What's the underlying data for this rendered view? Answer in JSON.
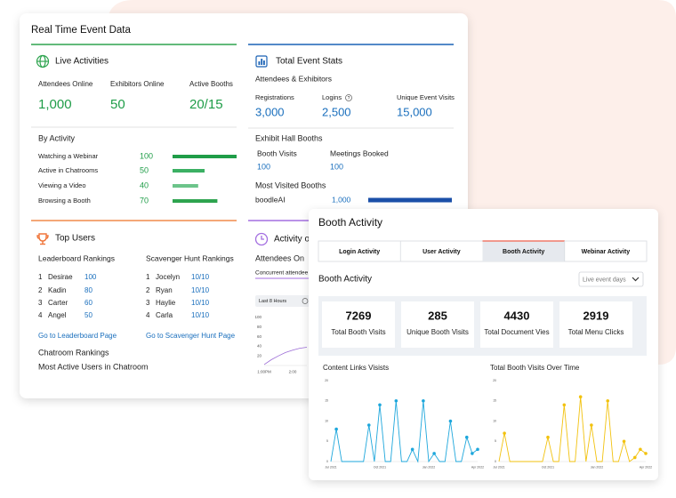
{
  "main": {
    "title": "Real Time Event Data"
  },
  "live": {
    "title": "Live Activities",
    "stats": [
      {
        "label": "Attendees Online",
        "value": "1,000"
      },
      {
        "label": "Exhibitors Online",
        "value": "50"
      },
      {
        "label": "Active Booths",
        "value": "20/15"
      }
    ]
  },
  "by_activity": {
    "title": "By Activity",
    "rows": [
      {
        "label": "Watching a Webinar",
        "value": 100
      },
      {
        "label": "Active in Chatrooms",
        "value": 50
      },
      {
        "label": "Viewing a Video",
        "value": 40
      },
      {
        "label": "Browsing a Booth",
        "value": 70
      }
    ]
  },
  "total": {
    "title": "Total Event Stats",
    "subtitle": "Attendees & Exhibitors",
    "stats": [
      {
        "label": "Registrations",
        "value": "3,000"
      },
      {
        "label": "Logins",
        "value": "2,500"
      },
      {
        "label": "Unique Event Visits",
        "value": "15,000"
      }
    ]
  },
  "exhibit": {
    "title": "Exhibit Hall Booths",
    "stats": [
      {
        "label": "Booth Visits",
        "value": "100"
      },
      {
        "label": "Meetings Booked",
        "value": "100"
      }
    ],
    "most_visited": {
      "title": "Most Visited Booths",
      "rows": [
        {
          "label": "boodleAI",
          "value": 1000,
          "value_label": "1,000"
        }
      ]
    }
  },
  "top_users": {
    "title": "Top Users",
    "leaderboard": {
      "title": "Leaderboard Rankings",
      "link": "Go to Leaderboard Page",
      "rows": [
        {
          "rank": "1",
          "name": "Desirae",
          "score": "100"
        },
        {
          "rank": "2",
          "name": "Kadin",
          "score": "80"
        },
        {
          "rank": "3",
          "name": "Carter",
          "score": "60"
        },
        {
          "rank": "4",
          "name": "Angel",
          "score": "50"
        }
      ]
    },
    "scavenger": {
      "title": "Scavenger Hunt Rankings",
      "link": "Go to Scavenger Hunt Page",
      "rows": [
        {
          "rank": "1",
          "name": "Jocelyn",
          "score": "10/10"
        },
        {
          "rank": "2",
          "name": "Ryan",
          "score": "10/10"
        },
        {
          "rank": "3",
          "name": "Haylie",
          "score": "10/10"
        },
        {
          "rank": "4",
          "name": "Carla",
          "score": "10/10"
        }
      ]
    },
    "chatroom_title": "Chatroom Rankings",
    "chatroom_subtitle": "Most Active Users in Chatroom"
  },
  "activity": {
    "title": "Activity o",
    "subtitle": "Attendees On",
    "tab": "Concurrent attendee",
    "button": "Last 8 Hours",
    "chart": {
      "type": "line",
      "color": "#9b6bd6",
      "categories": [
        "1:00PM",
        null,
        null,
        null,
        "2:00",
        null,
        null
      ],
      "values": [
        2,
        12,
        20,
        27,
        32,
        36,
        38
      ],
      "ylim": [
        0,
        100
      ],
      "yticks": [
        20,
        40,
        60,
        80,
        100
      ]
    }
  },
  "booth": {
    "title": "Booth Activity",
    "tabs": [
      "Login Activity",
      "User Activity",
      "Booth Activity",
      "Webinar Activity"
    ],
    "active_tab": 2,
    "section": "Booth Activity",
    "filter": "Live event days",
    "kpis": [
      {
        "value": 7269,
        "label": "Total Booth Visits"
      },
      {
        "value": 285,
        "label": "Unique Booth Visits"
      },
      {
        "value": 4430,
        "label": "Total Document Vies"
      },
      {
        "value": 2919,
        "label": "Total Menu Clicks"
      }
    ],
    "charts": [
      {
        "type": "line",
        "title": "Content Links Visists",
        "color": "#1ea7dc",
        "categories": [
          "Jul 2021",
          null,
          null,
          null,
          null,
          null,
          null,
          null,
          null,
          "Oct 2021",
          null,
          null,
          null,
          null,
          null,
          null,
          null,
          null,
          "Jan 2022",
          null,
          null,
          null,
          null,
          null,
          null,
          null,
          null,
          "Apr 2022"
        ],
        "values": [
          0,
          8,
          0,
          0,
          0,
          0,
          0,
          9,
          0,
          14,
          0,
          0,
          15,
          0,
          0,
          3,
          0,
          15,
          0,
          2,
          0,
          0,
          10,
          0,
          0,
          6,
          2,
          3
        ],
        "ylim": [
          0,
          20
        ],
        "yticks": [
          0,
          5,
          10,
          15,
          20
        ]
      },
      {
        "type": "line",
        "title": "Total Booth Visits Over Time",
        "color": "#f2c20f",
        "categories": [
          "Jul 2021",
          null,
          null,
          null,
          null,
          null,
          null,
          null,
          null,
          "Oct 2021",
          null,
          null,
          null,
          null,
          null,
          null,
          null,
          null,
          "Jan 2022",
          null,
          null,
          null,
          null,
          null,
          null,
          null,
          null,
          "Apr 2022"
        ],
        "values": [
          0,
          7,
          0,
          0,
          0,
          0,
          0,
          0,
          0,
          6,
          0,
          0,
          14,
          0,
          0,
          16,
          0,
          9,
          0,
          0,
          15,
          0,
          0,
          5,
          0,
          1,
          3,
          2
        ],
        "ylim": [
          0,
          20
        ],
        "yticks": [
          0,
          5,
          10,
          15,
          20
        ]
      }
    ]
  }
}
